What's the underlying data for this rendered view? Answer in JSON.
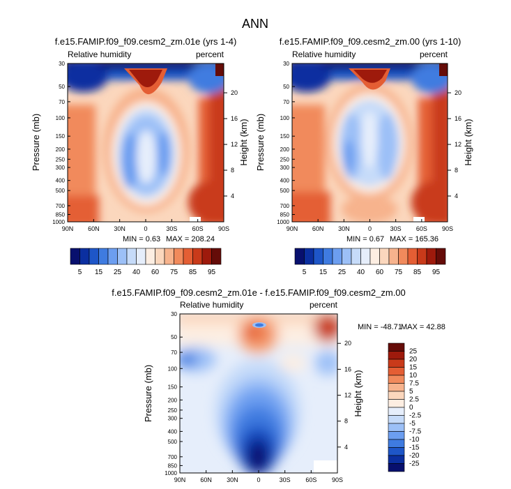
{
  "main_title": "ANN",
  "colors": {
    "diverging": [
      "#08106e",
      "#0b2fa0",
      "#1e56c8",
      "#3f7be0",
      "#6c9ef0",
      "#9cc0f7",
      "#c6dbf9",
      "#e6eefb",
      "#fdeee2",
      "#fbd7bd",
      "#f7b38d",
      "#f18a5c",
      "#e45e34",
      "#c93a1a",
      "#9e1a0c",
      "#650c08"
    ],
    "diff": [
      "#08106e",
      "#0b2fa0",
      "#1e56c8",
      "#3f7be0",
      "#6c9ef0",
      "#9cc0f7",
      "#c6dbf9",
      "#e6eefb",
      "#fdeee2",
      "#fbd7bd",
      "#f7b38d",
      "#f18a5c",
      "#e45e34",
      "#c93a1a",
      "#9e1a0c",
      "#650c08"
    ]
  },
  "chart_data": [
    {
      "type": "heatmap",
      "title": "f.e15.FAMIP.f09_f09.cesm2_zm.01e (yrs 1-4)",
      "left_label": "Relative humidity",
      "right_label": "percent",
      "xlabel": "",
      "ylabel": "Pressure (mb)",
      "y2label": "Height (km)",
      "x_ticks": [
        "90N",
        "60N",
        "30N",
        "0",
        "30S",
        "60S",
        "90S"
      ],
      "y_ticks": [
        "30",
        "50",
        "70",
        "100",
        "150",
        "200",
        "250",
        "300",
        "400",
        "500",
        "700",
        "850",
        "1000"
      ],
      "y_tick_values": [
        30,
        50,
        70,
        100,
        150,
        200,
        250,
        300,
        400,
        500,
        700,
        850,
        1000
      ],
      "y2_ticks": [
        "20",
        "16",
        "12",
        "8",
        "4"
      ],
      "y2_tick_values": [
        20,
        16,
        12,
        8,
        4
      ],
      "ylim": [
        30,
        1000
      ],
      "min_label": "MIN =   0.63",
      "max_label": "MAX = 208.24",
      "colorbar_labels": [
        "5",
        "15",
        "25",
        "40",
        "60",
        "75",
        "85",
        "95"
      ]
    },
    {
      "type": "heatmap",
      "title": "f.e15.FAMIP.f09_f09.cesm2_zm.00 (yrs 1-10)",
      "left_label": "Relative humidity",
      "right_label": "percent",
      "xlabel": "",
      "ylabel": "Pressure (mb)",
      "y2label": "Height (km)",
      "x_ticks": [
        "90N",
        "60N",
        "30N",
        "0",
        "30S",
        "60S",
        "90S"
      ],
      "y_ticks": [
        "30",
        "50",
        "70",
        "100",
        "150",
        "200",
        "250",
        "300",
        "400",
        "500",
        "700",
        "850",
        "1000"
      ],
      "y_tick_values": [
        30,
        50,
        70,
        100,
        150,
        200,
        250,
        300,
        400,
        500,
        700,
        850,
        1000
      ],
      "y2_ticks": [
        "20",
        "16",
        "12",
        "8",
        "4"
      ],
      "y2_tick_values": [
        20,
        16,
        12,
        8,
        4
      ],
      "ylim": [
        30,
        1000
      ],
      "min_label": "MIN =   0.67",
      "max_label": "MAX = 165.36",
      "colorbar_labels": [
        "5",
        "15",
        "25",
        "40",
        "60",
        "75",
        "85",
        "95"
      ]
    },
    {
      "type": "heatmap",
      "title": "f.e15.FAMIP.f09_f09.cesm2_zm.01e - f.e15.FAMIP.f09_f09.cesm2_zm.00",
      "left_label": "Relative humidity",
      "right_label": "percent",
      "xlabel": "",
      "ylabel": "Pressure (mb)",
      "y2label": "Height (km)",
      "x_ticks": [
        "90N",
        "60N",
        "30N",
        "0",
        "30S",
        "60S",
        "90S"
      ],
      "y_ticks": [
        "30",
        "50",
        "70",
        "100",
        "150",
        "200",
        "250",
        "300",
        "400",
        "500",
        "700",
        "850",
        "1000"
      ],
      "y_tick_values": [
        30,
        50,
        70,
        100,
        150,
        200,
        250,
        300,
        400,
        500,
        700,
        850,
        1000
      ],
      "y2_ticks": [
        "20",
        "16",
        "12",
        "8",
        "4"
      ],
      "y2_tick_values": [
        20,
        16,
        12,
        8,
        4
      ],
      "ylim": [
        30,
        1000
      ],
      "min_label": "MIN = -48.71",
      "max_label": "MAX =  42.88",
      "colorbar_labels": [
        "25",
        "20",
        "15",
        "10",
        "7.5",
        "5",
        "2.5",
        "0",
        "-2.5",
        "-5",
        "-7.5",
        "-10",
        "-15",
        "-20",
        "-25"
      ]
    }
  ]
}
